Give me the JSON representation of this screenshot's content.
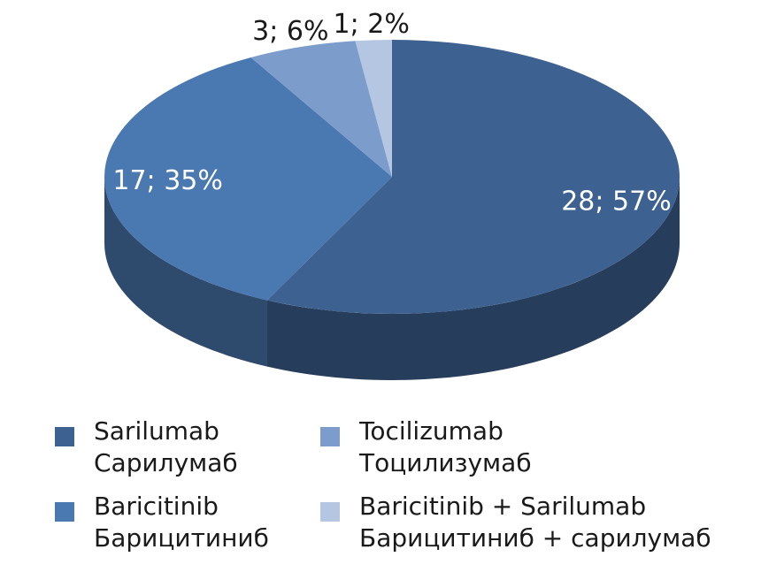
{
  "chart_data": {
    "type": "pie",
    "title": "",
    "slices": [
      {
        "label": "Sarilumab",
        "label_ru": "Сарилумаб",
        "value": 28,
        "percent": 57,
        "data_label": "28; 57%",
        "color": "#3d6292"
      },
      {
        "label": "Baricitinib",
        "label_ru": "Барицитиниб",
        "value": 17,
        "percent": 35,
        "data_label": "17; 35%",
        "color": "#4a78b0"
      },
      {
        "label": "Tocilizumab",
        "label_ru": "Тоцилизумаб",
        "value": 3,
        "percent": 6,
        "data_label": "3; 6%",
        "color": "#7c9ccb"
      },
      {
        "label": "Baricitinib + Sarilumab",
        "label_ru": "Барицитиниб + сарилумаб",
        "value": 1,
        "percent": 2,
        "data_label": "1; 2%",
        "color": "#b4c6e2"
      }
    ],
    "legend_position": "bottom",
    "style": "3d"
  }
}
